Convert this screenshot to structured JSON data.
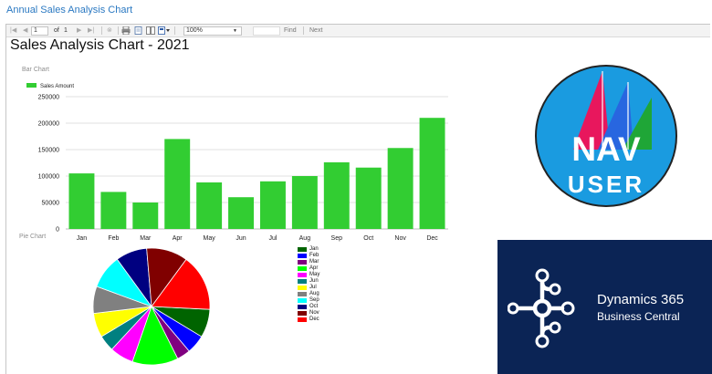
{
  "page": {
    "title": "Annual Sales Analysis Chart"
  },
  "toolbar": {
    "page_value": "1",
    "of_label": "of",
    "total_pages": "1",
    "zoom": "100%",
    "find_label": "Find",
    "next_label": "Next"
  },
  "report": {
    "title": "Sales Analysis Chart - 2021"
  },
  "bar_section": {
    "label": "Bar Chart"
  },
  "pie_section": {
    "label": "Pie Chart"
  },
  "chart_data": [
    {
      "type": "bar",
      "categories": [
        "Jan",
        "Feb",
        "Mar",
        "Apr",
        "May",
        "Jun",
        "Jul",
        "Aug",
        "Sep",
        "Oct",
        "Nov",
        "Dec"
      ],
      "series": [
        {
          "name": "Sales Amount",
          "values": [
            105000,
            70000,
            50000,
            170000,
            88000,
            60000,
            90000,
            100000,
            126000,
            116000,
            153000,
            210000
          ]
        }
      ],
      "yticks": [
        0,
        50000,
        100000,
        150000,
        200000,
        250000
      ],
      "ylim": [
        0,
        250000
      ],
      "color": "#32cd32",
      "grid": true,
      "legend": "top-left"
    },
    {
      "type": "pie",
      "categories": [
        "Jan",
        "Feb",
        "Mar",
        "Apr",
        "May",
        "Jun",
        "Jul",
        "Aug",
        "Sep",
        "Oct",
        "Nov",
        "Dec"
      ],
      "values": [
        105000,
        70000,
        50000,
        170000,
        88000,
        60000,
        90000,
        100000,
        126000,
        116000,
        153000,
        210000
      ],
      "colors": [
        "#006400",
        "#0000ff",
        "#800080",
        "#00ff00",
        "#ff00ff",
        "#008080",
        "#ffff00",
        "#808080",
        "#00ffff",
        "#000080",
        "#800000",
        "#ff0000"
      ],
      "legend": "right"
    }
  ],
  "logos": {
    "nav": {
      "line1": "NAV",
      "line2": "USER"
    },
    "bc": {
      "line1": "Dynamics 365",
      "line2": "Business Central"
    }
  },
  "icons": [
    "first-page-icon",
    "prev-page-icon",
    "next-page-icon",
    "last-page-icon",
    "stop-icon",
    "print-icon",
    "page-setup-icon",
    "layout-icon",
    "export-icon"
  ]
}
